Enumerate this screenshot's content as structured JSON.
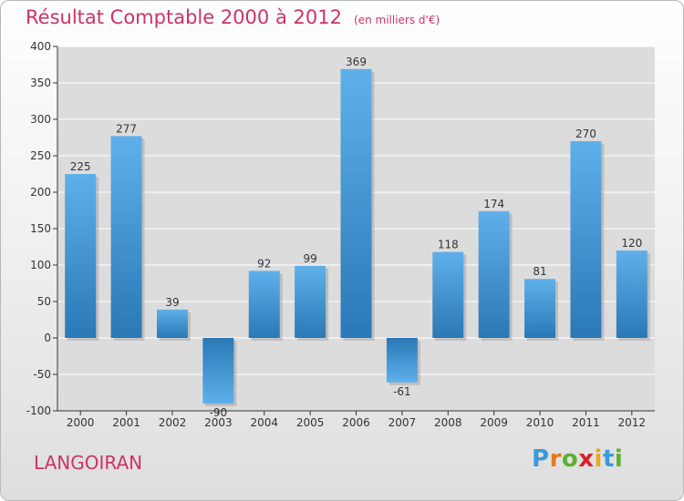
{
  "title": "Résultat Comptable 2000 à 2012",
  "subtitle": "(en milliers d'€)",
  "location": "LANGOIRAN",
  "brand": {
    "letters": [
      "P",
      "r",
      "o",
      "x",
      "i",
      "t",
      "i"
    ],
    "colors": [
      "#3a9ad9",
      "#e07b20",
      "#5cb030",
      "#d8202a",
      "#e8a820",
      "#3a9ad9",
      "#5cb030"
    ]
  },
  "colors": {
    "title": "#cc3366",
    "bar_top": "#5fb0ea",
    "bar_bottom": "#2a78b6"
  },
  "chart_data": {
    "type": "bar",
    "title": "Résultat Comptable 2000 à 2012",
    "ylabel": "en milliers d'€",
    "categories": [
      "2000",
      "2001",
      "2002",
      "2003",
      "2004",
      "2005",
      "2006",
      "2007",
      "2008",
      "2009",
      "2010",
      "2011",
      "2012"
    ],
    "values": [
      225,
      277,
      39,
      -90,
      92,
      99,
      369,
      -61,
      118,
      174,
      81,
      270,
      120
    ],
    "ylim": [
      -100,
      400
    ],
    "yticks": [
      -100,
      -50,
      0,
      50,
      100,
      150,
      200,
      250,
      300,
      350,
      400
    ],
    "grid": true
  }
}
